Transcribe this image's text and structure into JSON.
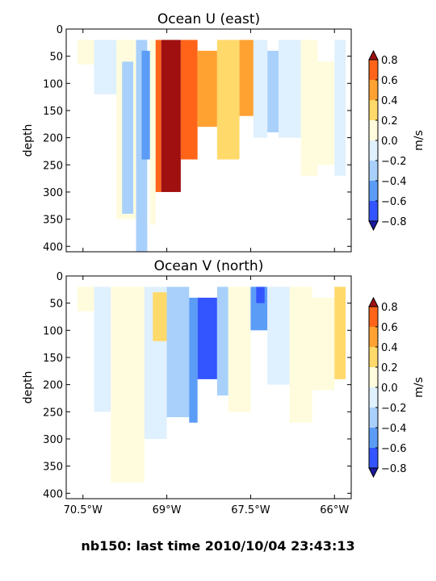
{
  "footer": "nb150: last time 2010/10/04 23:43:13",
  "levels": [
    -0.8,
    -0.6,
    -0.4,
    -0.2,
    0.0,
    0.2,
    0.4,
    0.6,
    0.8
  ],
  "level_colors": [
    "#3355ff",
    "#5b9cf6",
    "#a8d0fb",
    "#dff0fe",
    "#fffcdd",
    "#ffd96a",
    "#ffa232",
    "#ff6419"
  ],
  "extend_colors": {
    "under": "#1a1aa0",
    "over": "#a01010"
  },
  "chart_data": [
    {
      "type": "heatmap",
      "title": "Ocean U (east)",
      "ylabel": "depth",
      "xlim": [
        -70.8,
        -65.7
      ],
      "ylim": [
        410,
        0
      ],
      "x_ticks": [
        -70.5,
        -69.0,
        -67.5,
        -66.0
      ],
      "x_tick_labels": [
        "70.5°W",
        "69°W",
        "67.5°W",
        "66°W"
      ],
      "y_ticks": [
        0,
        50,
        100,
        150,
        200,
        250,
        300,
        350,
        400
      ],
      "x_tick_labels_visible": false,
      "colorbar_label": "m/s",
      "colorbar_ticks": [
        "0.8",
        "0.6",
        "0.4",
        "0.2",
        "0.0",
        "−0.2",
        "−0.4",
        "−0.6",
        "−0.8"
      ],
      "bands": [
        {
          "x0": -70.6,
          "x1": -70.3,
          "top": 20,
          "bottom": 65,
          "value": 0.1
        },
        {
          "x0": -70.3,
          "x1": -69.9,
          "top": 20,
          "bottom": 120,
          "value": -0.1
        },
        {
          "x0": -69.9,
          "x1": -69.5,
          "top": 20,
          "bottom": 350,
          "value": 0.1
        },
        {
          "x0": -69.8,
          "x1": -69.6,
          "top": 60,
          "bottom": 340,
          "value": -0.3
        },
        {
          "x0": -69.55,
          "x1": -69.35,
          "top": 20,
          "bottom": 410,
          "value": -0.3
        },
        {
          "x0": -69.45,
          "x1": -69.3,
          "top": 40,
          "bottom": 240,
          "value": -0.5
        },
        {
          "x0": -69.3,
          "x1": -69.2,
          "top": 20,
          "bottom": 360,
          "value": 0.1
        },
        {
          "x0": -69.2,
          "x1": -69.1,
          "top": 20,
          "bottom": 300,
          "value": 0.7
        },
        {
          "x0": -69.1,
          "x1": -68.75,
          "top": 20,
          "bottom": 300,
          "value": 0.9
        },
        {
          "x0": -68.75,
          "x1": -68.45,
          "top": 20,
          "bottom": 240,
          "value": 0.7
        },
        {
          "x0": -68.45,
          "x1": -68.1,
          "top": 40,
          "bottom": 180,
          "value": 0.5
        },
        {
          "x0": -68.1,
          "x1": -67.7,
          "top": 20,
          "bottom": 240,
          "value": 0.3
        },
        {
          "x0": -67.7,
          "x1": -67.45,
          "top": 20,
          "bottom": 160,
          "value": 0.5
        },
        {
          "x0": -67.45,
          "x1": -67.2,
          "top": 20,
          "bottom": 200,
          "value": -0.1
        },
        {
          "x0": -67.2,
          "x1": -67.0,
          "top": 40,
          "bottom": 190,
          "value": -0.3
        },
        {
          "x0": -67.0,
          "x1": -66.6,
          "top": 20,
          "bottom": 200,
          "value": -0.1
        },
        {
          "x0": -66.6,
          "x1": -66.3,
          "top": 20,
          "bottom": 270,
          "value": 0.1
        },
        {
          "x0": -66.3,
          "x1": -66.0,
          "top": 60,
          "bottom": 250,
          "value": 0.1
        },
        {
          "x0": -66.0,
          "x1": -65.8,
          "top": 20,
          "bottom": 270,
          "value": -0.1
        }
      ]
    },
    {
      "type": "heatmap",
      "title": "Ocean V (north)",
      "ylabel": "depth",
      "xlim": [
        -70.8,
        -65.7
      ],
      "ylim": [
        410,
        0
      ],
      "x_ticks": [
        -70.5,
        -69.0,
        -67.5,
        -66.0
      ],
      "x_tick_labels": [
        "70.5°W",
        "69°W",
        "67.5°W",
        "66°W"
      ],
      "y_ticks": [
        0,
        50,
        100,
        150,
        200,
        250,
        300,
        350,
        400
      ],
      "x_tick_labels_visible": true,
      "colorbar_label": "m/s",
      "colorbar_ticks": [
        "0.8",
        "0.6",
        "0.4",
        "0.2",
        "0.0",
        "−0.2",
        "−0.4",
        "−0.6",
        "−0.8"
      ],
      "bands": [
        {
          "x0": -70.6,
          "x1": -70.3,
          "top": 20,
          "bottom": 65,
          "value": 0.1
        },
        {
          "x0": -70.3,
          "x1": -70.0,
          "top": 20,
          "bottom": 250,
          "value": -0.1
        },
        {
          "x0": -70.0,
          "x1": -69.4,
          "top": 20,
          "bottom": 380,
          "value": 0.1
        },
        {
          "x0": -69.4,
          "x1": -69.0,
          "top": 20,
          "bottom": 300,
          "value": -0.1
        },
        {
          "x0": -69.25,
          "x1": -69.0,
          "top": 30,
          "bottom": 120,
          "value": 0.3
        },
        {
          "x0": -69.0,
          "x1": -68.6,
          "top": 20,
          "bottom": 260,
          "value": -0.3
        },
        {
          "x0": -68.6,
          "x1": -68.45,
          "top": 40,
          "bottom": 270,
          "value": -0.5
        },
        {
          "x0": -68.45,
          "x1": -68.1,
          "top": 40,
          "bottom": 190,
          "value": -0.7
        },
        {
          "x0": -68.1,
          "x1": -67.9,
          "top": 20,
          "bottom": 220,
          "value": -0.3
        },
        {
          "x0": -67.9,
          "x1": -67.5,
          "top": 20,
          "bottom": 250,
          "value": 0.1
        },
        {
          "x0": -67.5,
          "x1": -67.2,
          "top": 20,
          "bottom": 100,
          "value": -0.5
        },
        {
          "x0": -67.4,
          "x1": -67.25,
          "top": 20,
          "bottom": 50,
          "value": -0.7
        },
        {
          "x0": -67.2,
          "x1": -66.8,
          "top": 20,
          "bottom": 200,
          "value": -0.1
        },
        {
          "x0": -66.8,
          "x1": -66.4,
          "top": 20,
          "bottom": 270,
          "value": 0.1
        },
        {
          "x0": -66.4,
          "x1": -66.0,
          "top": 40,
          "bottom": 210,
          "value": 0.1
        },
        {
          "x0": -66.0,
          "x1": -65.8,
          "top": 20,
          "bottom": 190,
          "value": 0.3
        }
      ]
    }
  ]
}
